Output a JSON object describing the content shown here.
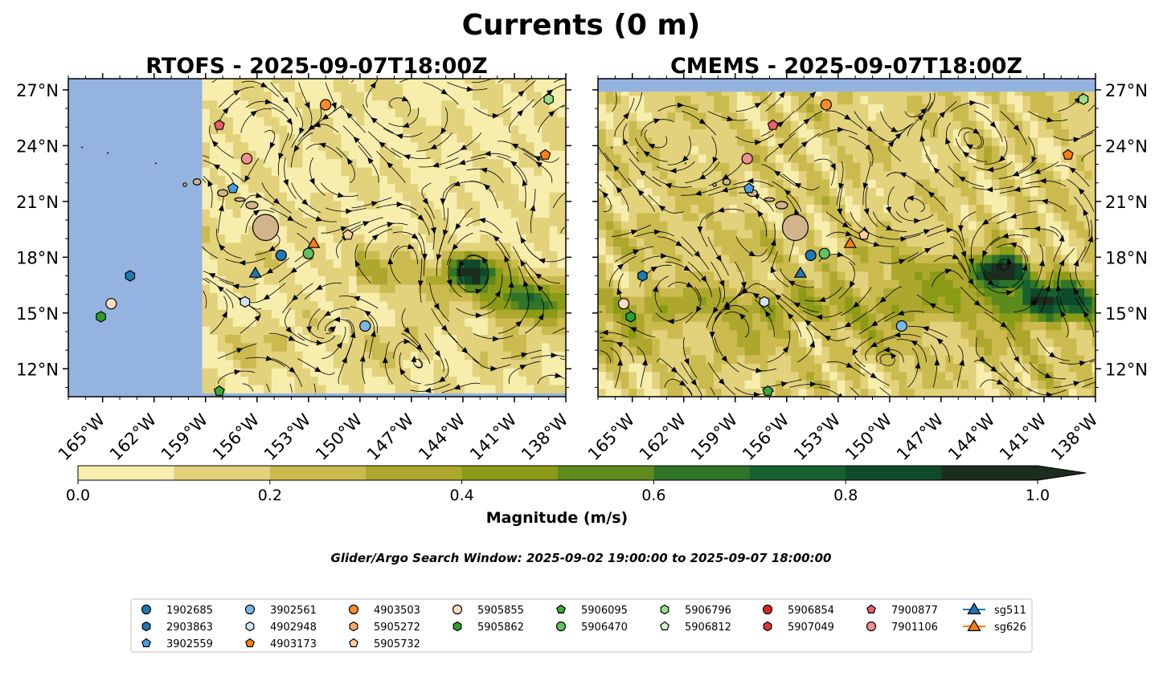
{
  "figure": {
    "title": "Currents (0 m)",
    "search_window": "Glider/Argo Search Window: 2025-09-02 19:00:00 to 2025-09-07 18:00:00"
  },
  "chart_data": [
    {
      "type": "map",
      "title": "RTOFS - 2025-09-07T18:00Z",
      "variable": "Current magnitude (m/s) with streamlines",
      "lon_range": [
        -167,
        -138
      ],
      "lat_range": [
        10.5,
        27.6
      ],
      "lon_ticks": [
        "165°W",
        "162°W",
        "159°W",
        "156°W",
        "153°W",
        "150°W",
        "147°W",
        "144°W",
        "141°W",
        "138°W"
      ],
      "lat_ticks": [
        "27°N",
        "24°N",
        "21°N",
        "18°N",
        "15°N",
        "12°N"
      ],
      "lat_tick_values": [
        27,
        24,
        21,
        18,
        15,
        12
      ],
      "lon_tick_values": [
        -165,
        -162,
        -159,
        -156,
        -153,
        -150,
        -147,
        -144,
        -141,
        -138
      ],
      "data_coverage": "no model data west of about 159°W",
      "markers": [
        {
          "id": "1902685",
          "lon": -154.6,
          "lat": 18.1
        },
        {
          "id": "2903863",
          "lon": -163.4,
          "lat": 17.0
        },
        {
          "id": "3902559",
          "lon": -157.4,
          "lat": 21.7
        },
        {
          "id": "3902561",
          "lon": -149.7,
          "lat": 14.3
        },
        {
          "id": "4902948",
          "lon": -156.7,
          "lat": 15.6
        },
        {
          "id": "4903503",
          "lon": -152.0,
          "lat": 26.2
        },
        {
          "id": "4903173",
          "lon": -139.2,
          "lat": 23.5
        },
        {
          "id": "5905855",
          "lon": -164.5,
          "lat": 15.5
        },
        {
          "id": "5905862",
          "lon": -165.1,
          "lat": 14.8
        },
        {
          "id": "5905732",
          "lon": -150.7,
          "lat": 19.2
        },
        {
          "id": "5906095",
          "lon": -158.2,
          "lat": 10.8
        },
        {
          "id": "5906470",
          "lon": -153.0,
          "lat": 18.2
        },
        {
          "id": "5906796",
          "lon": -139.0,
          "lat": 26.5
        },
        {
          "id": "7900877",
          "lon": -158.2,
          "lat": 25.1
        },
        {
          "id": "7901106",
          "lon": -156.6,
          "lat": 23.3
        },
        {
          "id": "sg511",
          "lon": -156.1,
          "lat": 17.1
        },
        {
          "id": "sg626",
          "lon": -152.7,
          "lat": 18.7
        }
      ]
    },
    {
      "type": "map",
      "title": "CMEMS - 2025-09-07T18:00Z",
      "variable": "Current magnitude (m/s) with streamlines",
      "lon_range": [
        -167,
        -138
      ],
      "lat_range": [
        10.5,
        27.6
      ],
      "lon_ticks": [
        "165°W",
        "162°W",
        "159°W",
        "156°W",
        "153°W",
        "150°W",
        "147°W",
        "144°W",
        "141°W",
        "138°W"
      ],
      "lat_ticks": [
        "27°N",
        "24°N",
        "21°N",
        "18°N",
        "15°N",
        "12°N"
      ],
      "lat_tick_values": [
        27,
        24,
        21,
        18,
        15,
        12
      ],
      "lon_tick_values": [
        -165,
        -162,
        -159,
        -156,
        -153,
        -150,
        -147,
        -144,
        -141,
        -138
      ],
      "data_coverage": "no data north of about 27°N",
      "markers": [
        {
          "id": "1902685",
          "lon": -154.6,
          "lat": 18.1
        },
        {
          "id": "2903863",
          "lon": -164.4,
          "lat": 17.0
        },
        {
          "id": "3902559",
          "lon": -158.2,
          "lat": 21.7
        },
        {
          "id": "3902561",
          "lon": -149.3,
          "lat": 14.3
        },
        {
          "id": "4902948",
          "lon": -157.3,
          "lat": 15.6
        },
        {
          "id": "4903503",
          "lon": -153.7,
          "lat": 26.2
        },
        {
          "id": "4903173",
          "lon": -139.6,
          "lat": 23.5
        },
        {
          "id": "5905855",
          "lon": -165.5,
          "lat": 15.5
        },
        {
          "id": "5905862",
          "lon": -165.1,
          "lat": 14.8
        },
        {
          "id": "5905732",
          "lon": -151.5,
          "lat": 19.2
        },
        {
          "id": "5906095",
          "lon": -157.1,
          "lat": 10.8
        },
        {
          "id": "5906470",
          "lon": -153.8,
          "lat": 18.2
        },
        {
          "id": "5906796",
          "lon": -138.7,
          "lat": 26.5
        },
        {
          "id": "7900877",
          "lon": -156.8,
          "lat": 25.1
        },
        {
          "id": "7901106",
          "lon": -158.3,
          "lat": 23.3
        },
        {
          "id": "sg511",
          "lon": -155.2,
          "lat": 17.1
        },
        {
          "id": "sg626",
          "lon": -152.3,
          "lat": 18.7
        }
      ]
    }
  ],
  "colorbar": {
    "label": "Magnitude (m/s)",
    "ticks": [
      "0.0",
      "0.2",
      "0.4",
      "0.6",
      "0.8",
      "1.0"
    ],
    "tick_values": [
      0,
      0.2,
      0.4,
      0.6,
      0.8,
      1.0
    ],
    "levels": [
      0,
      0.1,
      0.2,
      0.3,
      0.4,
      0.5,
      0.6,
      0.7,
      0.8,
      0.9,
      1.0
    ],
    "colors": [
      "#f7eeae",
      "#e2d27c",
      "#cbbb4f",
      "#ada72d",
      "#8a9b15",
      "#5d8a1c",
      "#2f7428",
      "#17602f",
      "#0f4a2a",
      "#1c2c1e"
    ],
    "extend": "max"
  },
  "legend": {
    "items": [
      {
        "label": "1902685",
        "marker": "circle",
        "color": "#1f77b4"
      },
      {
        "label": "2903863",
        "marker": "hexagon",
        "color": "#1f77b4"
      },
      {
        "label": "3902559",
        "marker": "pentagon",
        "color": "#4a9fe0"
      },
      {
        "label": "3902561",
        "marker": "circle",
        "color": "#7db9e8"
      },
      {
        "label": "4902948",
        "marker": "hexagon",
        "color": "#cfe6f7"
      },
      {
        "label": "4903173",
        "marker": "pentagon",
        "color": "#ff7f0e"
      },
      {
        "label": "4903503",
        "marker": "circle",
        "color": "#ff8c2a"
      },
      {
        "label": "5905272",
        "marker": "hexagon",
        "color": "#ffac6b"
      },
      {
        "label": "5905732",
        "marker": "pentagon",
        "color": "#ffd0a0"
      },
      {
        "label": "5905855",
        "marker": "circle",
        "color": "#ffdcc0"
      },
      {
        "label": "5905862",
        "marker": "hexagon",
        "color": "#2ca02c"
      },
      {
        "label": "5906095",
        "marker": "pentagon",
        "color": "#3aa83a"
      },
      {
        "label": "5906470",
        "marker": "circle",
        "color": "#62c062"
      },
      {
        "label": "5906796",
        "marker": "hexagon",
        "color": "#98df8a"
      },
      {
        "label": "5906812",
        "marker": "pentagon",
        "color": "#d8f5d0"
      },
      {
        "label": "5906854",
        "marker": "circle",
        "color": "#d62728"
      },
      {
        "label": "5907049",
        "marker": "hexagon",
        "color": "#e0393a"
      },
      {
        "label": "7900877",
        "marker": "pentagon",
        "color": "#e8606a"
      },
      {
        "label": "7901106",
        "marker": "circle",
        "color": "#f08f8f"
      },
      {
        "label": "sg511",
        "marker": "triangle-line",
        "color": "#1f77b4"
      },
      {
        "label": "sg626",
        "marker": "triangle-line",
        "color": "#ff7f0e"
      }
    ]
  },
  "colors": {
    "land_fill": "#d2b48c",
    "ocean_nodata": "#95b3e0",
    "streamline": "#000000"
  }
}
